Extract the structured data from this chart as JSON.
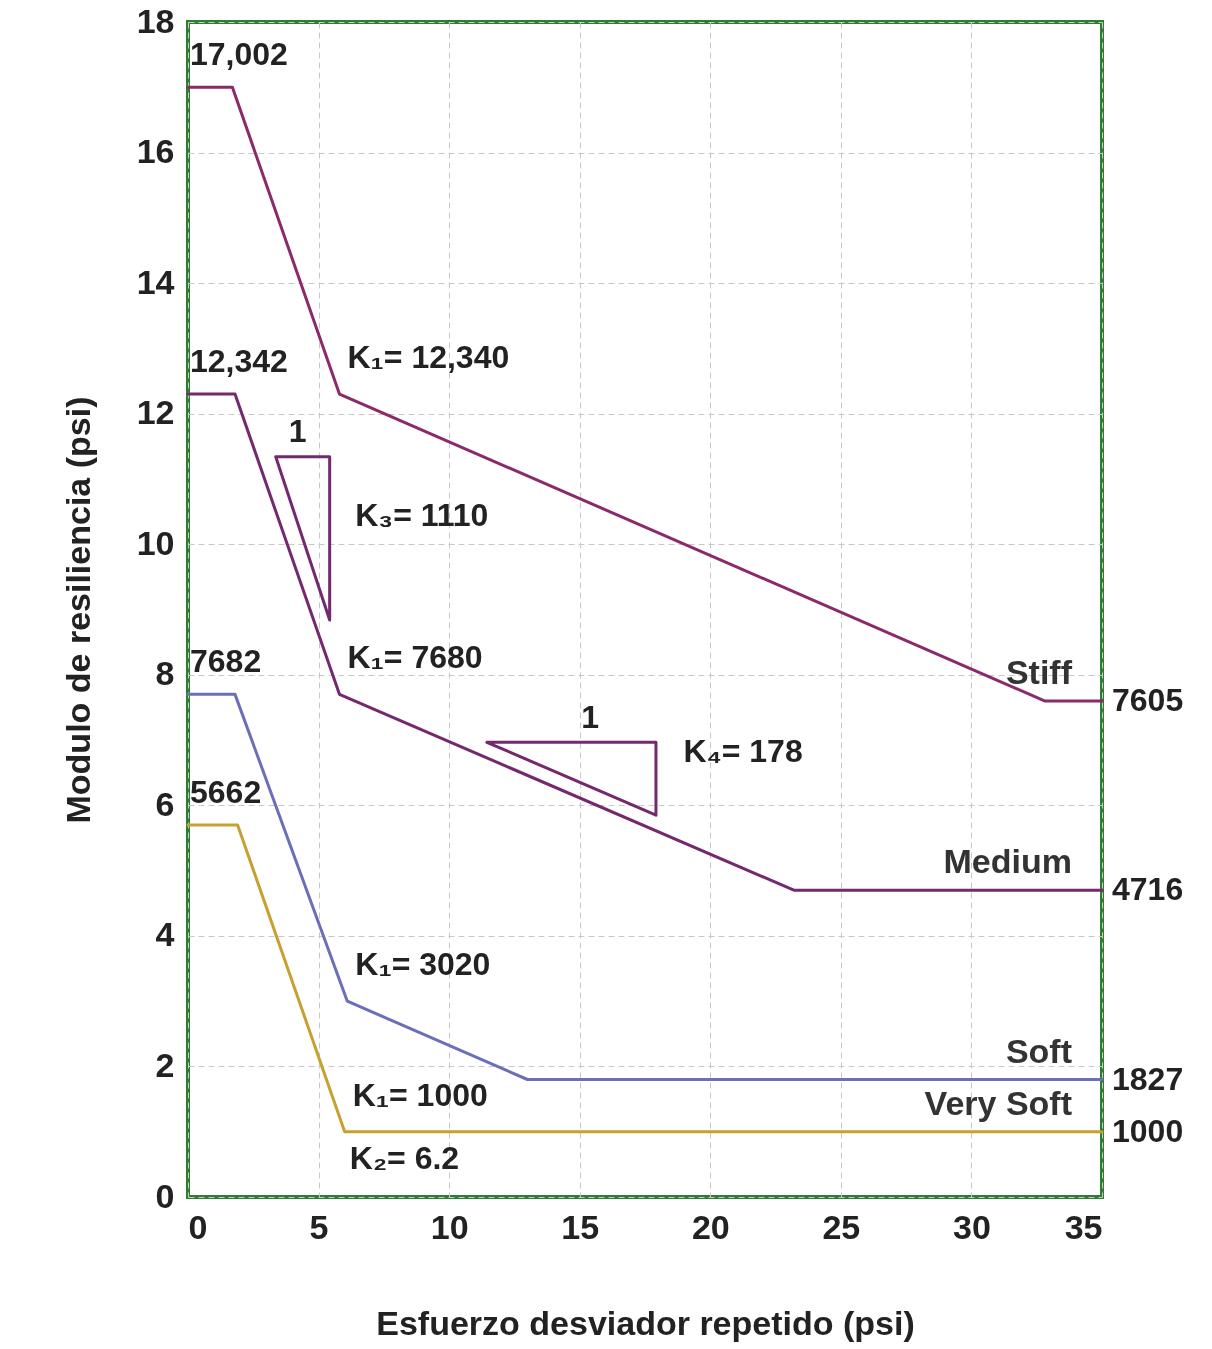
{
  "chart_data": {
    "type": "line",
    "xlabel": "Esfuerzo desviador repetido (psi)",
    "ylabel": "Modulo de resiliencia (psi)",
    "xlim": [
      0,
      35
    ],
    "xticks": [
      0,
      5,
      10,
      15,
      20,
      25,
      30,
      35
    ],
    "ylim": [
      0,
      18
    ],
    "yticks": [
      0,
      2,
      4,
      6,
      8,
      10,
      12,
      14,
      16,
      18
    ],
    "grid": true,
    "marker": "none",
    "line_style": "solid",
    "series": [
      {
        "name": "Stiff",
        "color": "#8b2a6a",
        "x": [
          0,
          1.7,
          5.8,
          32.8,
          35
        ],
        "values": [
          17.0,
          17.0,
          12.3,
          7.6,
          7.6
        ]
      },
      {
        "name": "Medium",
        "color": "#74286e",
        "x": [
          0,
          1.8,
          5.8,
          23.2,
          35
        ],
        "values": [
          12.3,
          12.3,
          7.7,
          4.7,
          4.7
        ]
      },
      {
        "name": "Soft",
        "color": "#6b6fb8",
        "x": [
          0,
          1.8,
          6.1,
          13,
          35
        ],
        "values": [
          7.7,
          7.7,
          3.0,
          1.8,
          1.8
        ]
      },
      {
        "name": "Very Soft",
        "color": "#c8a030",
        "x": [
          0,
          1.9,
          6.0,
          35
        ],
        "values": [
          5.7,
          5.7,
          1.0,
          1.0
        ]
      }
    ],
    "annotations": [
      {
        "text": "17,002",
        "x": 0,
        "y": 17.0
      },
      {
        "text": "K₁= 12,340",
        "x": 5.8,
        "y": 12.3
      },
      {
        "text": "7605",
        "x": 35,
        "y": 7.6
      },
      {
        "text": "12,342",
        "x": 0,
        "y": 12.3
      },
      {
        "text": "K₁= 7680",
        "x": 5.8,
        "y": 7.7
      },
      {
        "text": "4716",
        "x": 35,
        "y": 4.7
      },
      {
        "text": "7682",
        "x": 0,
        "y": 7.7
      },
      {
        "text": "K₁= 3020",
        "x": 6.1,
        "y": 3.0
      },
      {
        "text": "1827",
        "x": 35,
        "y": 1.8
      },
      {
        "text": "5662",
        "x": 0,
        "y": 5.7
      },
      {
        "text": "K₁= 1000",
        "x": 6.0,
        "y": 1.0
      },
      {
        "text": "1000",
        "x": 35,
        "y": 1.0
      },
      "1",
      "K₃= 1110",
      "1",
      "K₄= 178",
      "K₂= 6.2"
    ]
  }
}
